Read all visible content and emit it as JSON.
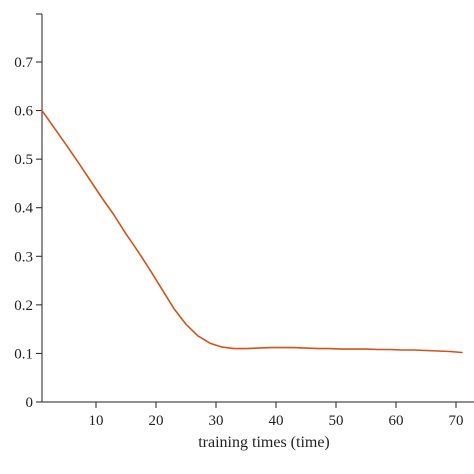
{
  "chart_data": {
    "type": "line",
    "title": "",
    "xlabel": "training times (time)",
    "ylabel": "",
    "xlim": [
      1,
      73
    ],
    "ylim": [
      0,
      0.7
    ],
    "xticks": [
      10,
      20,
      30,
      40,
      50,
      60,
      70
    ],
    "xtick_labels": [
      "10",
      "20",
      "30",
      "40",
      "50",
      "60",
      "70"
    ],
    "yticks": [
      0,
      0.1,
      0.2,
      0.3,
      0.4,
      0.5,
      0.6,
      0.7
    ],
    "ytick_labels": [
      "0",
      "0.1",
      "0.2",
      "0.3",
      "0.4",
      "0.5",
      "0.6",
      "0.7"
    ],
    "grid": false,
    "line_color": "#d4521a",
    "series": [
      {
        "x": [
          1,
          3,
          5,
          7,
          9,
          11,
          13,
          15,
          17,
          19,
          21,
          23,
          25,
          27,
          29,
          31,
          33,
          35,
          37,
          39,
          41,
          43,
          45,
          47,
          49,
          51,
          53,
          55,
          57,
          59,
          61,
          63,
          65,
          67,
          69,
          71
        ],
        "y": [
          0.6,
          0.565,
          0.53,
          0.494,
          0.457,
          0.42,
          0.385,
          0.346,
          0.31,
          0.272,
          0.232,
          0.192,
          0.16,
          0.136,
          0.121,
          0.113,
          0.11,
          0.11,
          0.111,
          0.112,
          0.112,
          0.112,
          0.111,
          0.11,
          0.11,
          0.109,
          0.109,
          0.109,
          0.108,
          0.108,
          0.107,
          0.107,
          0.106,
          0.105,
          0.104,
          0.102
        ]
      }
    ]
  }
}
